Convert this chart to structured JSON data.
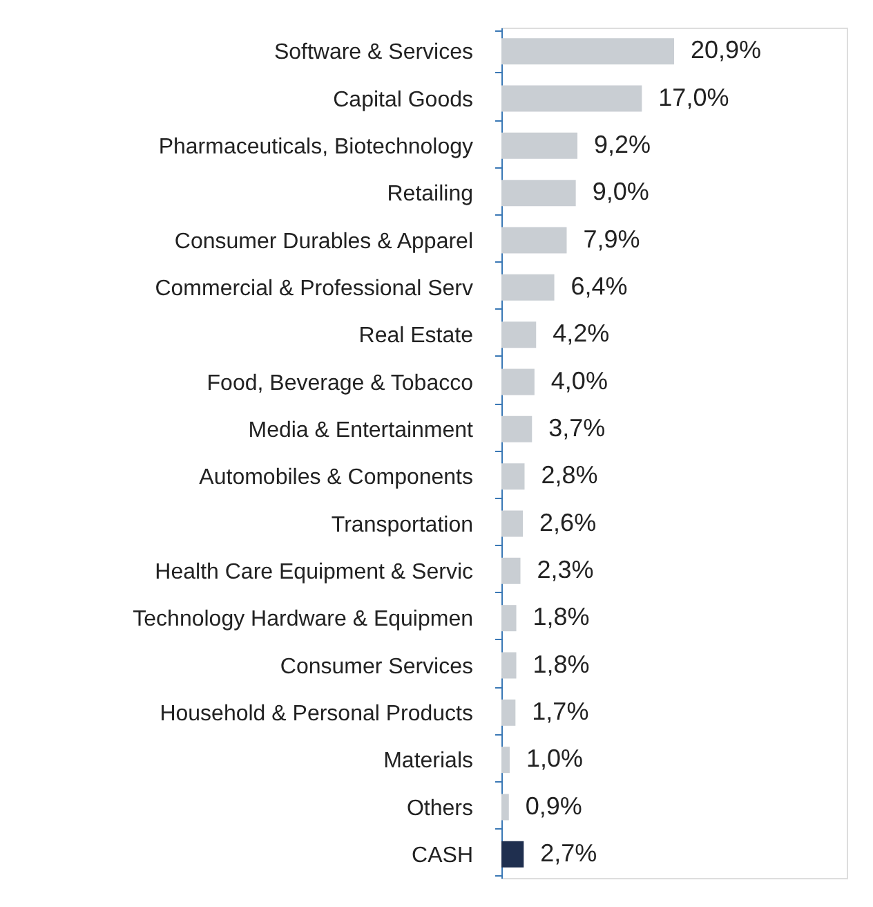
{
  "chart_data": {
    "type": "bar",
    "orientation": "horizontal",
    "categories": [
      "Software & Services",
      "Capital Goods",
      "Pharmaceuticals, Biotechnology",
      "Retailing",
      "Consumer Durables & Apparel",
      "Commercial & Professional Serv",
      "Real Estate",
      "Food, Beverage & Tobacco",
      "Media & Entertainment",
      "Automobiles & Components",
      "Transportation",
      "Health Care Equipment & Servic",
      "Technology Hardware & Equipmen",
      "Consumer Services",
      "Household & Personal Products",
      "Materials",
      "Others",
      "CASH"
    ],
    "values": [
      20.9,
      17.0,
      9.2,
      9.0,
      7.9,
      6.4,
      4.2,
      4.0,
      3.7,
      2.8,
      2.6,
      2.3,
      1.8,
      1.8,
      1.7,
      1.0,
      0.9,
      2.7
    ],
    "value_labels": [
      "20,9%",
      "17,0%",
      "9,2%",
      "9,0%",
      "7,9%",
      "6,4%",
      "4,2%",
      "4,0%",
      "3,7%",
      "2,8%",
      "2,6%",
      "2,3%",
      "1,8%",
      "1,8%",
      "1,7%",
      "1,0%",
      "0,9%",
      "2,7%"
    ],
    "colors": [
      "#c9ced3",
      "#c9ced3",
      "#c9ced3",
      "#c9ced3",
      "#c9ced3",
      "#c9ced3",
      "#c9ced3",
      "#c9ced3",
      "#c9ced3",
      "#c9ced3",
      "#c9ced3",
      "#c9ced3",
      "#c9ced3",
      "#c9ced3",
      "#c9ced3",
      "#c9ced3",
      "#c9ced3",
      "#1f2f4f"
    ],
    "grid": false
  }
}
